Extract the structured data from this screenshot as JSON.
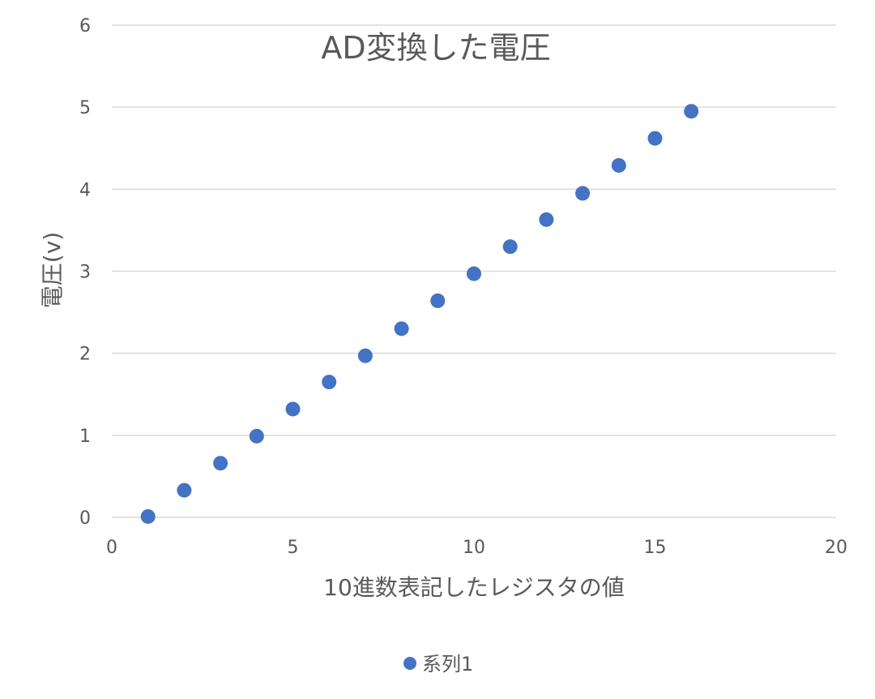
{
  "chart_data": {
    "type": "scatter",
    "title": "AD変換した電圧",
    "xlabel": "10進数表記したレジスタの値",
    "ylabel": "電圧(v)",
    "xlim": [
      0,
      20
    ],
    "ylim": [
      0,
      6
    ],
    "xticks": [
      0,
      5,
      10,
      15,
      20
    ],
    "yticks": [
      0,
      1,
      2,
      3,
      4,
      5,
      6
    ],
    "grid": "horizontal",
    "legend_position": "bottom",
    "series": [
      {
        "name": "系列1",
        "color": "#4472C4",
        "x": [
          1,
          2,
          3,
          4,
          5,
          6,
          7,
          8,
          9,
          10,
          11,
          12,
          13,
          14,
          15,
          16
        ],
        "y": [
          0.01,
          0.33,
          0.66,
          0.99,
          1.32,
          1.65,
          1.97,
          2.3,
          2.64,
          2.97,
          3.3,
          3.63,
          3.95,
          4.29,
          4.62,
          4.95
        ]
      }
    ]
  }
}
